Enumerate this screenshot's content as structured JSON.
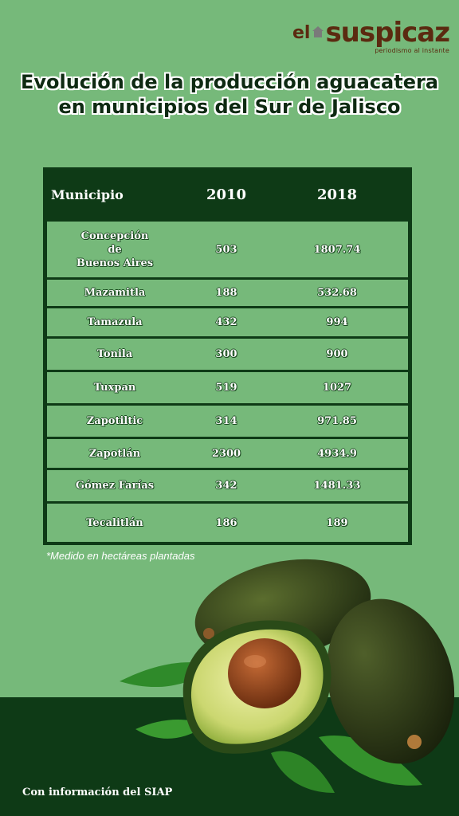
{
  "logo": {
    "prefix": "el",
    "word": "suspicaz",
    "tagline": "periodismo al instante"
  },
  "title": {
    "line1": "Evolución de la producción aguacatera",
    "line2": "en municipios del Sur de Jalisco"
  },
  "table": {
    "headers": [
      "Municipio",
      "2010",
      "2018"
    ],
    "rows": [
      {
        "municipio_lines": [
          "Concepción",
          "de",
          "Buenos Aires"
        ],
        "y2010": "503",
        "y2018": "1807.74"
      },
      {
        "municipio_lines": [
          "Mazamitla"
        ],
        "y2010": "188",
        "y2018": "532.68"
      },
      {
        "municipio_lines": [
          "Tamazula"
        ],
        "y2010": "432",
        "y2018": "994"
      },
      {
        "municipio_lines": [
          "Tonila"
        ],
        "y2010": "300",
        "y2018": "900"
      },
      {
        "municipio_lines": [
          "Tuxpan"
        ],
        "y2010": "519",
        "y2018": "1027"
      },
      {
        "municipio_lines": [
          "Zapotiltic"
        ],
        "y2010": "314",
        "y2018": "971.85"
      },
      {
        "municipio_lines": [
          "Zapotlán"
        ],
        "y2010": "2300",
        "y2018": "4934.9"
      },
      {
        "municipio_lines": [
          "Gómez Farías"
        ],
        "y2010": "342",
        "y2018": "1481.33"
      },
      {
        "municipio_lines": [
          "Tecalitlán"
        ],
        "y2010": "186",
        "y2018": "189"
      }
    ]
  },
  "note": "*Medido en hectáreas plantadas",
  "source": "Con información del SIAP",
  "colors": {
    "background": "#76b97a",
    "dark_green": "#0e3a16",
    "logo_brown": "#5b2a10"
  }
}
